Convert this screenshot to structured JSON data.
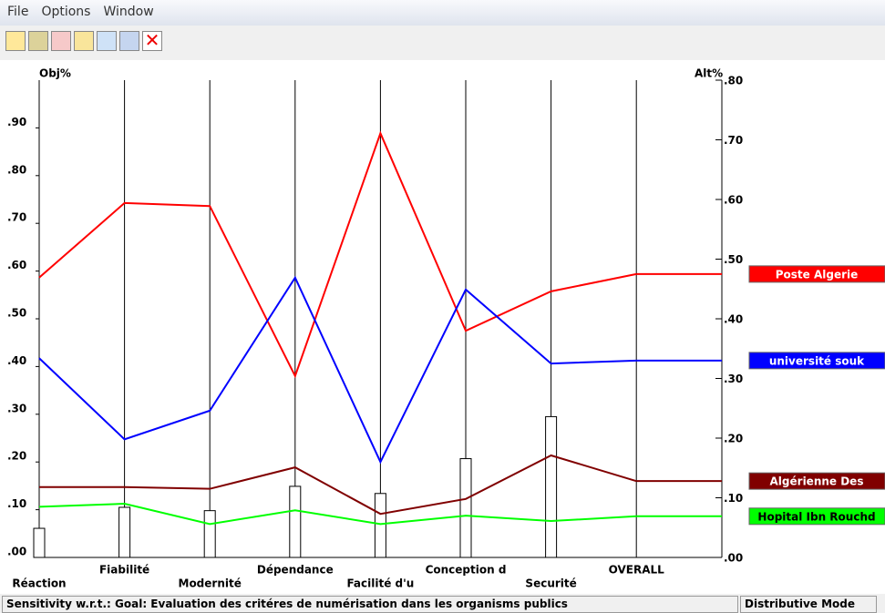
{
  "menu": [
    "File",
    "Options",
    "Window"
  ],
  "chart_data": {
    "type": "line",
    "y_label": "Obj%",
    "y2_label": "Alt%",
    "categories": [
      "Réaction",
      "Fiabilité",
      "Modernité",
      "Dépendance",
      "Facilité d'u",
      "Conception d",
      "Securité",
      "OVERALL"
    ],
    "weights": [
      0.061,
      0.105,
      0.098,
      0.149,
      0.134,
      0.207,
      0.295
    ],
    "weight_color": "#000000",
    "series": [
      {
        "name": "Poste Algerie",
        "color": "#ff0000",
        "axis": "y2",
        "values": [
          0.469,
          0.594,
          0.589,
          0.304,
          0.711,
          0.38,
          0.446,
          0.475
        ]
      },
      {
        "name": "université souk",
        "color": "#0000ff",
        "axis": "y2",
        "values": [
          0.334,
          0.198,
          0.246,
          0.469,
          0.16,
          0.449,
          0.325,
          0.33
        ]
      },
      {
        "name": "Algérienne Des",
        "color": "#800000",
        "axis": "y2",
        "values": [
          0.118,
          0.118,
          0.115,
          0.151,
          0.073,
          0.098,
          0.171,
          0.128
        ]
      },
      {
        "name": "Hopital Ibn Rouchd",
        "color": "#00ff00",
        "axis": "y2",
        "values": [
          0.085,
          0.09,
          0.056,
          0.079,
          0.056,
          0.07,
          0.061,
          0.069
        ]
      }
    ],
    "ylim": [
      0,
      1.0
    ],
    "yticks": [
      {
        "value": 0,
        "label": ".00"
      },
      {
        "value": 0.1,
        "label": ".10"
      },
      {
        "value": 0.2,
        "label": ".20"
      },
      {
        "value": 0.3,
        "label": ".30"
      },
      {
        "value": 0.4,
        "label": ".40"
      },
      {
        "value": 0.5,
        "label": ".50"
      },
      {
        "value": 0.6,
        "label": ".60"
      },
      {
        "value": 0.7,
        "label": ".70"
      },
      {
        "value": 0.8,
        "label": ".80"
      },
      {
        "value": 0.9,
        "label": ".90"
      }
    ],
    "y2lim": [
      0,
      0.8
    ],
    "y2ticks": [
      {
        "value": 0,
        "label": ".00"
      },
      {
        "value": 0.1,
        "label": ".10"
      },
      {
        "value": 0.2,
        "label": ".20"
      },
      {
        "value": 0.3,
        "label": ".30"
      },
      {
        "value": 0.4,
        "label": ".40"
      },
      {
        "value": 0.5,
        "label": ".50"
      },
      {
        "value": 0.6,
        "label": ".60"
      },
      {
        "value": 0.7,
        "label": ".70"
      },
      {
        "value": 0.8,
        "label": ".80"
      }
    ]
  },
  "status": {
    "goal": "Sensitivity w.r.t.: Goal: Evaluation des critéres de numérisation dans les organisms publics",
    "mode": "Distributive Mode"
  }
}
